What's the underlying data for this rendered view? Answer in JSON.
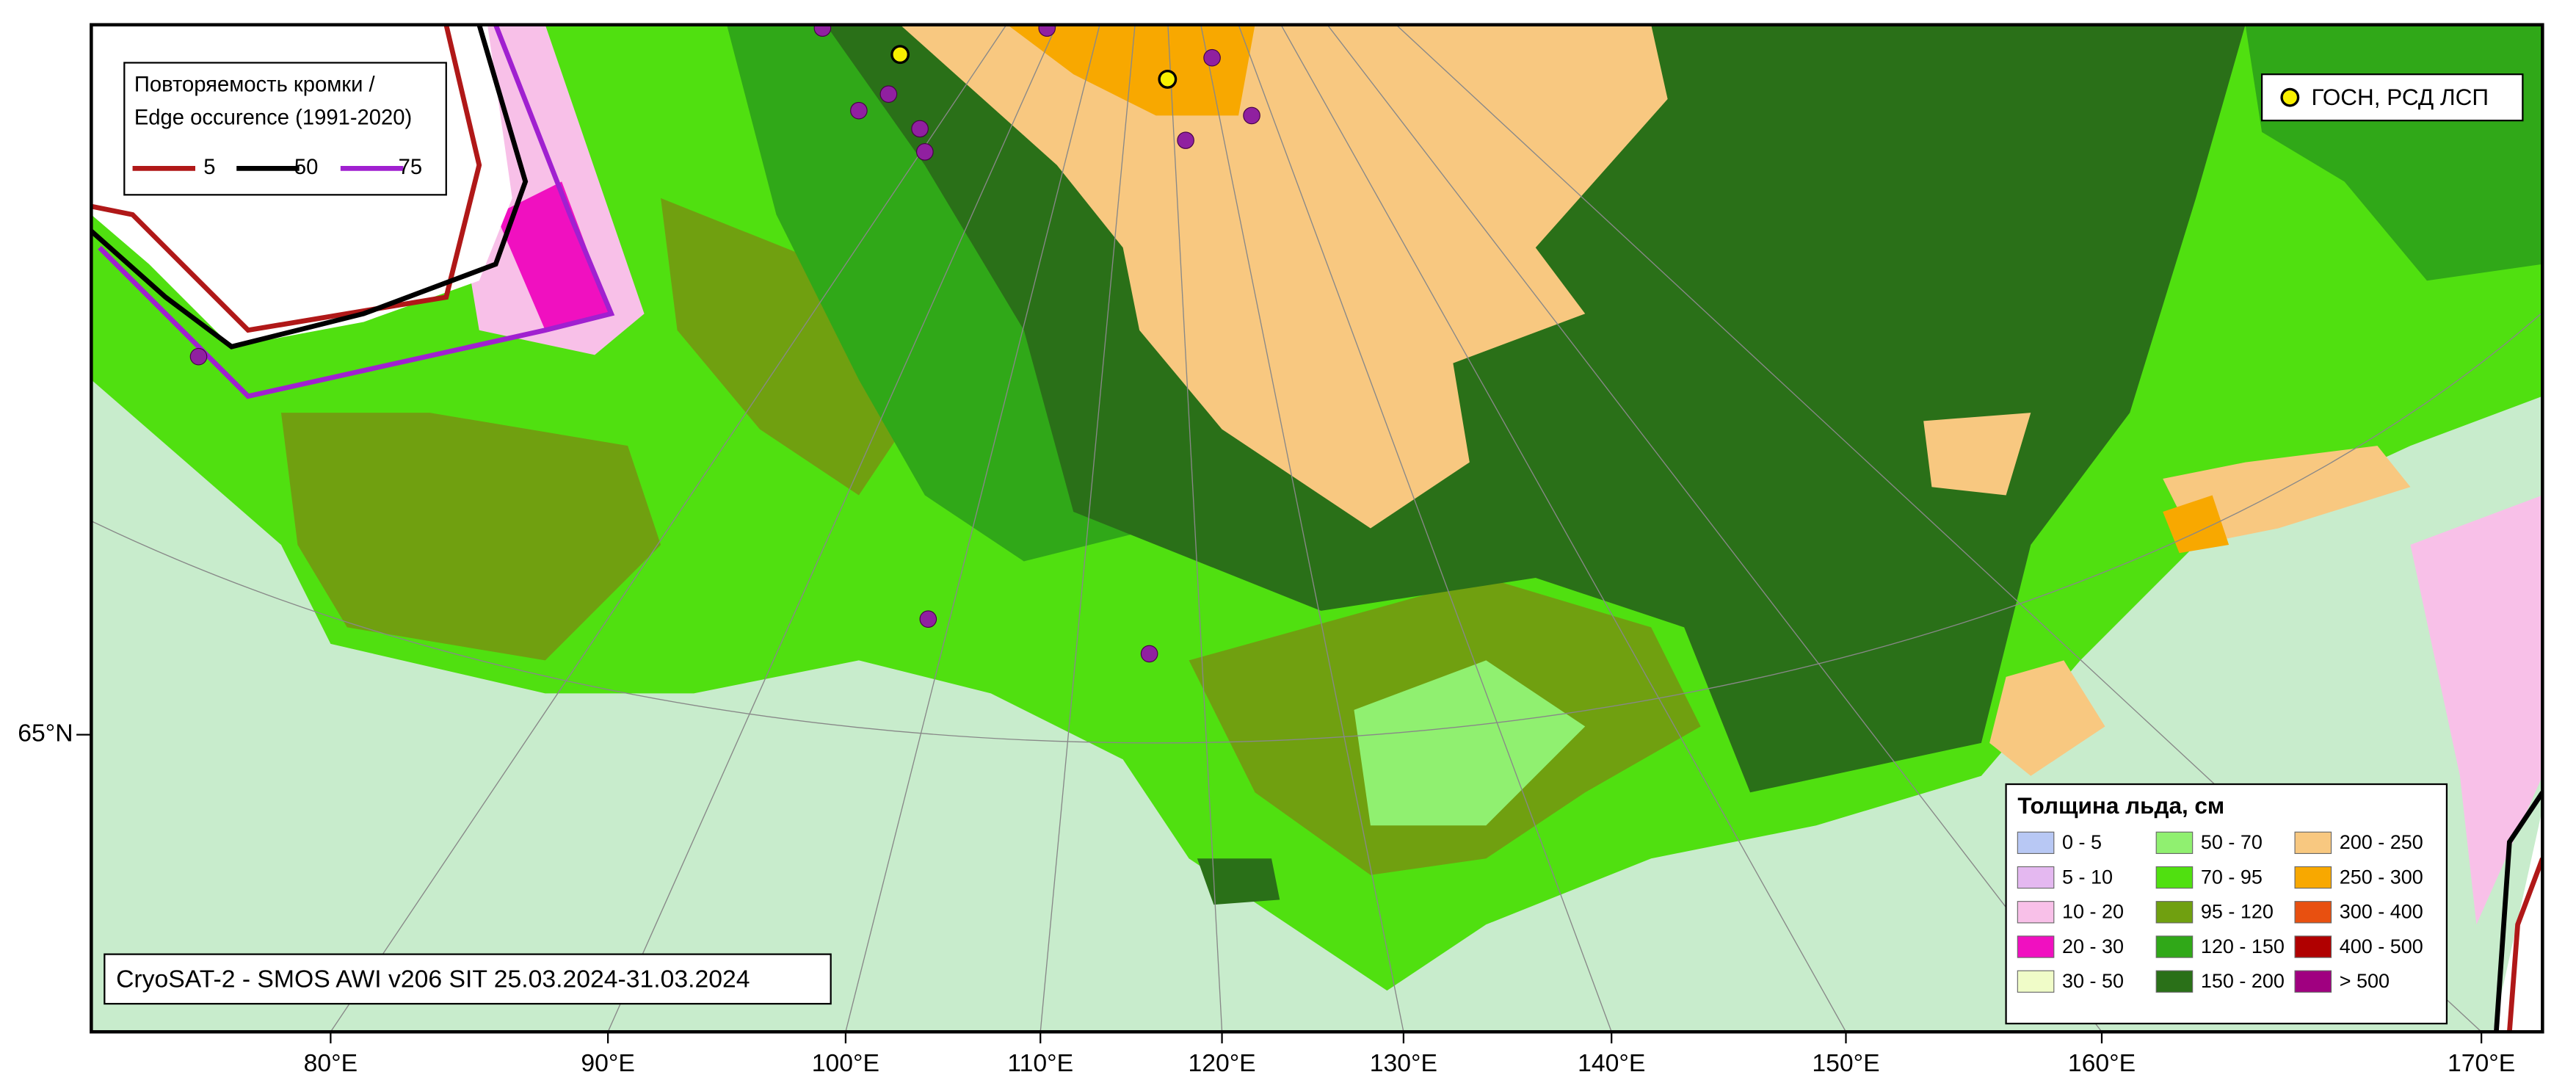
{
  "map": {
    "legend_edge": {
      "title": [
        "Повторяемость кромки /",
        "Edge occurence (1991-2020)"
      ],
      "entries": [
        {
          "label": "5",
          "color": "#b01818"
        },
        {
          "label": "50",
          "color": "#000000"
        },
        {
          "label": "75",
          "color": "#a020d0"
        }
      ]
    },
    "legend_station": {
      "label": "ГОСН, РСД ЛСП",
      "color": "#f8f000"
    },
    "legend_thickness": {
      "title": "Толщина льда, см",
      "entries": [
        {
          "label": "0 - 5",
          "color": "#b8c8f4"
        },
        {
          "label": "5 - 10",
          "color": "#e4b8f0"
        },
        {
          "label": "10 - 20",
          "color": "#f8c0e8"
        },
        {
          "label": "20 - 30",
          "color": "#f010c0"
        },
        {
          "label": "30 - 50",
          "color": "#f0fcc8"
        },
        {
          "label": "50 - 70",
          "color": "#90f070"
        },
        {
          "label": "70 - 95",
          "color": "#50e010"
        },
        {
          "label": "95 - 120",
          "color": "#70a010"
        },
        {
          "label": "120 - 150",
          "color": "#30a818"
        },
        {
          "label": "150 - 200",
          "color": "#2a7018"
        },
        {
          "label": "200 - 250",
          "color": "#f8c880"
        },
        {
          "label": "250 - 300",
          "color": "#f8a800"
        },
        {
          "label": "300 - 400",
          "color": "#e85010"
        },
        {
          "label": "400 - 500",
          "color": "#b00000"
        },
        {
          "label": "> 500",
          "color": "#a00080"
        }
      ]
    },
    "caption": "CryoSAT-2 - SMOS AWI v206 SIT 25.03.2024-31.03.2024",
    "longitude_labels": [
      "80°E",
      "90°E",
      "100°E",
      "110°E",
      "120°E",
      "130°E",
      "140°E",
      "150°E",
      "160°E",
      "170°E"
    ],
    "latitude_labels": [
      "65°N"
    ]
  }
}
